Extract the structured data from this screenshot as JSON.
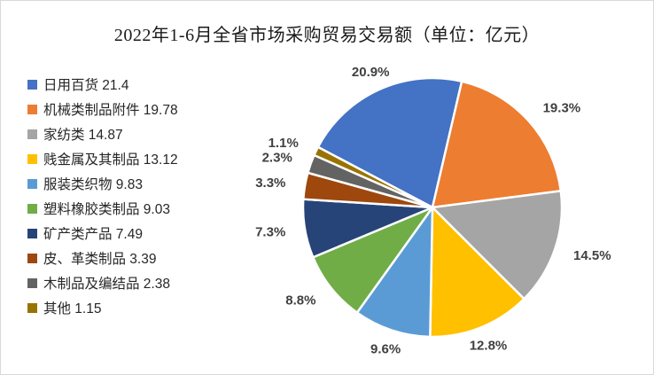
{
  "title": "2022年1-6月全省市场采购贸易交易额（单位：亿元）",
  "chart_data": {
    "type": "pie",
    "title": "2022年1-6月全省市场采购贸易交易额（单位：亿元）",
    "unit": "亿元",
    "legend_position": "left",
    "start_angle_deg": -62.2,
    "slice_border_color": "#ffffff",
    "label_color": "#404040",
    "frame_border_color": "#d9d9d9",
    "slices": [
      {
        "label": "日用百货",
        "value": 21.4,
        "pct": 20.9,
        "pct_label": "20.9%",
        "color": "#4472C4"
      },
      {
        "label": "机械类制品附件",
        "value": 19.78,
        "pct": 19.3,
        "pct_label": "19.3%",
        "color": "#ED7D31"
      },
      {
        "label": "家纺类",
        "value": 14.87,
        "pct": 14.5,
        "pct_label": "14.5%",
        "color": "#A5A5A5"
      },
      {
        "label": "贱金属及其制品",
        "value": 13.12,
        "pct": 12.8,
        "pct_label": "12.8%",
        "color": "#FFC000"
      },
      {
        "label": "服装类织物",
        "value": 9.83,
        "pct": 9.6,
        "pct_label": "9.6%",
        "color": "#5B9BD5"
      },
      {
        "label": "塑料橡胶类制品",
        "value": 9.03,
        "pct": 8.8,
        "pct_label": "8.8%",
        "color": "#70AD47"
      },
      {
        "label": "矿产类产品",
        "value": 7.49,
        "pct": 7.3,
        "pct_label": "7.3%",
        "color": "#264478"
      },
      {
        "label": "皮、革类制品",
        "value": 3.39,
        "pct": 3.3,
        "pct_label": "3.3%",
        "color": "#9E480E"
      },
      {
        "label": "木制品及编结品",
        "value": 2.38,
        "pct": 2.3,
        "pct_label": "2.3%",
        "color": "#636363"
      },
      {
        "label": "其他",
        "value": 1.15,
        "pct": 1.1,
        "pct_label": "1.1%",
        "color": "#997300"
      }
    ]
  }
}
